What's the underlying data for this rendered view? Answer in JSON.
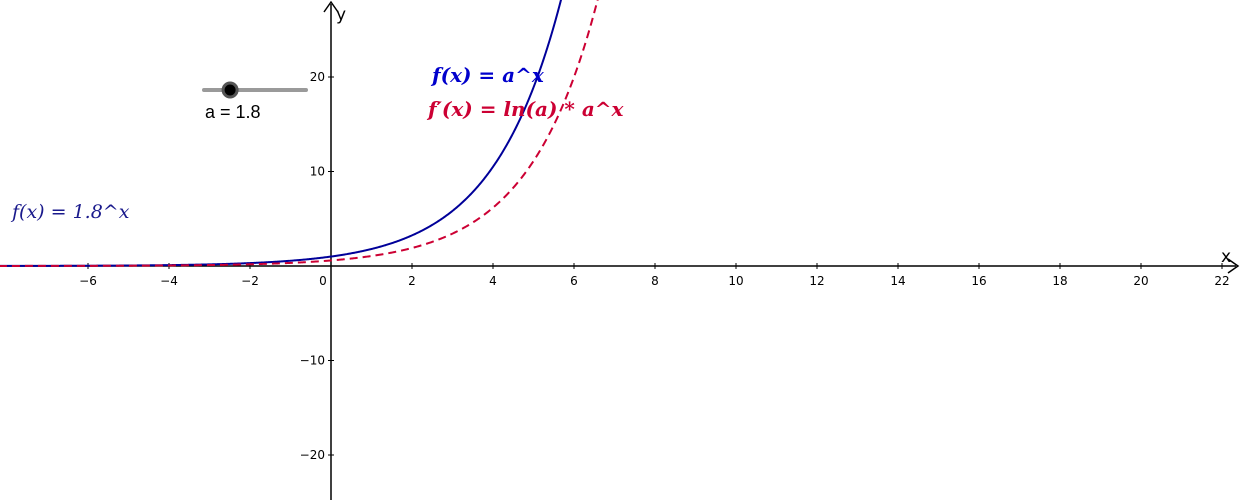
{
  "slider": {
    "name": "a",
    "value": 1.8,
    "label": "a = 1.8",
    "min": 0.1,
    "max": 5,
    "fraction": 0.57
  },
  "formulas": {
    "f_label": "f(x) = a^x",
    "f_prime_label": "f′(x) = ln(a) * a^x",
    "f_value_label": "f(x)  =  1.8^x"
  },
  "chart_data": {
    "type": "line",
    "title": "",
    "xlabel": "x",
    "ylabel": "y",
    "xlim": [
      -8.2,
      22.7
    ],
    "ylim": [
      -24.5,
      28
    ],
    "x_ticks": [
      -6,
      -4,
      -2,
      0,
      2,
      4,
      6,
      8,
      10,
      12,
      14,
      16,
      18,
      20,
      22
    ],
    "y_ticks": [
      -20,
      -10,
      10,
      20
    ],
    "grid": false,
    "series": [
      {
        "name": "f(x) = a^x",
        "function": "1.8^x",
        "color": "#000099",
        "style": "solid",
        "x": [
          -8,
          -6,
          -4,
          -2,
          0,
          1,
          2,
          3,
          4,
          4.5,
          5,
          5.5,
          5.7
        ],
        "y": [
          0.009,
          0.029,
          0.095,
          0.309,
          1,
          1.8,
          3.24,
          5.83,
          10.5,
          14.08,
          18.9,
          25.36,
          28.4
        ]
      },
      {
        "name": "f′(x) = ln(a) * a^x",
        "function": "ln(1.8) * 1.8^x",
        "color": "#cc0033",
        "style": "dashed",
        "x": [
          -8,
          -6,
          -4,
          -2,
          0,
          1,
          2,
          3,
          4,
          5,
          5.5,
          6,
          6.5,
          6.7
        ],
        "y": [
          0.005,
          0.017,
          0.056,
          0.182,
          0.588,
          1.058,
          1.904,
          3.427,
          6.169,
          11.1,
          14.89,
          19.98,
          26.81,
          30.1
        ]
      }
    ]
  }
}
